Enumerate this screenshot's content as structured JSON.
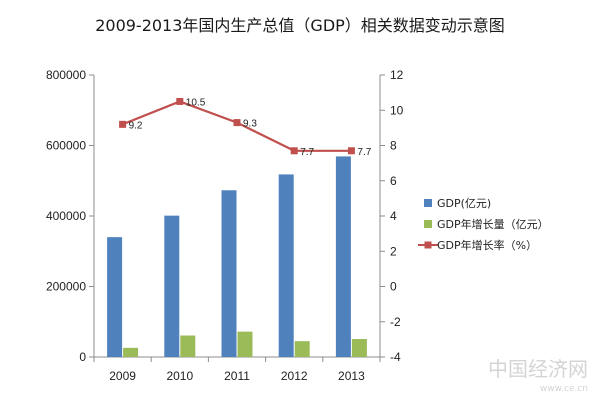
{
  "chart_data": {
    "type": "bar",
    "title": "2009-2013年国内生产总值（GDP）相关数据变动示意图",
    "categories": [
      "2009",
      "2010",
      "2011",
      "2012",
      "2013"
    ],
    "series": [
      {
        "name": "GDP(亿元)",
        "type": "bar",
        "axis": "left",
        "color": "#4F81BD",
        "values": [
          340000,
          401000,
          473000,
          518000,
          569000
        ]
      },
      {
        "name": "GDP年增长量（亿元）",
        "type": "bar",
        "axis": "left",
        "color": "#9BBB59",
        "values": [
          26000,
          61000,
          72000,
          45000,
          51000
        ]
      },
      {
        "name": "GDP年增长率（%）",
        "type": "line",
        "axis": "right",
        "color": "#C0504D",
        "values": [
          9.2,
          10.5,
          9.3,
          7.7,
          7.7
        ],
        "labels": [
          "9.2",
          "10.5",
          "9.3",
          "7.7",
          "7.7"
        ]
      }
    ],
    "y_left": {
      "min": 0,
      "max": 800000,
      "ticks": [
        "0",
        "200000",
        "400000",
        "600000",
        "800000"
      ]
    },
    "y_right": {
      "min": -4,
      "max": 12,
      "ticks": [
        "-4",
        "-2",
        "0",
        "2",
        "4",
        "6",
        "8",
        "10",
        "12"
      ]
    },
    "xlabel": "",
    "ylabel": "",
    "legend_position": "right",
    "grid": false
  },
  "watermark": {
    "text": "中国经济网",
    "url": "www.ce.cn"
  }
}
